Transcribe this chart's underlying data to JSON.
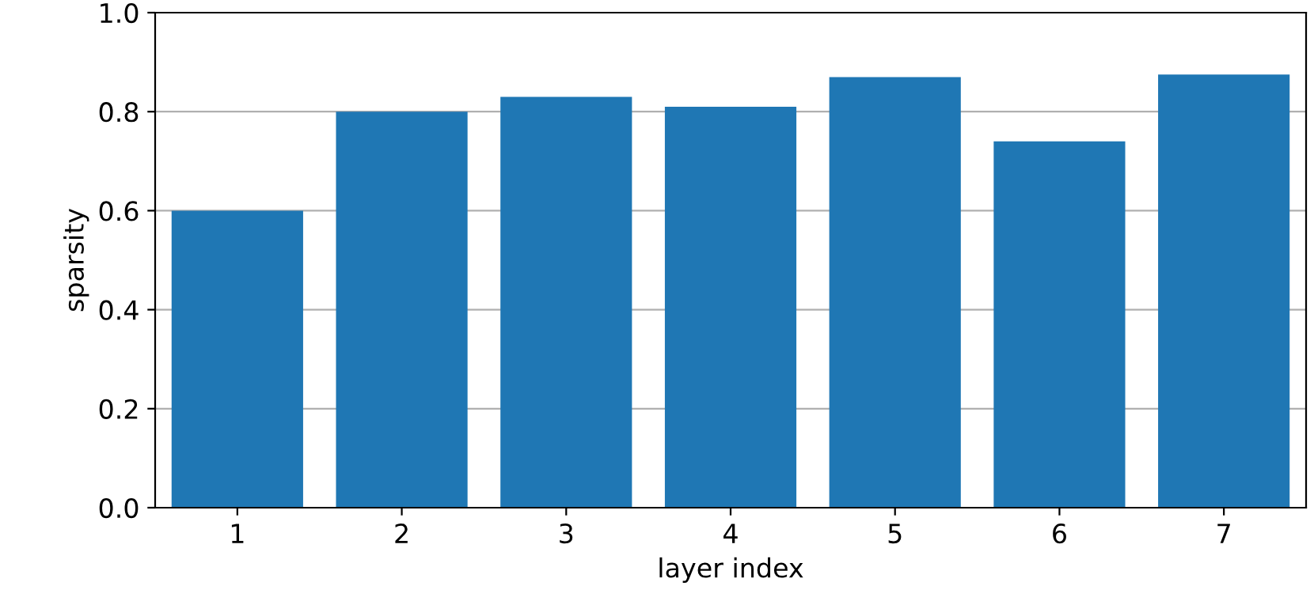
{
  "chart_data": {
    "type": "bar",
    "xlabel": "layer index",
    "ylabel": "sparsity",
    "categories": [
      "1",
      "2",
      "3",
      "4",
      "5",
      "6",
      "7"
    ],
    "values": [
      0.6,
      0.8,
      0.83,
      0.81,
      0.87,
      0.74,
      0.875
    ],
    "color": "#1f77b4",
    "ylim": [
      0,
      1
    ],
    "yticks": [
      {
        "value": 0,
        "label": "0.0"
      },
      0.2,
      0.4,
      0.6,
      0.8,
      {
        "value": 1,
        "label": "1.0"
      }
    ],
    "grid": "y"
  }
}
